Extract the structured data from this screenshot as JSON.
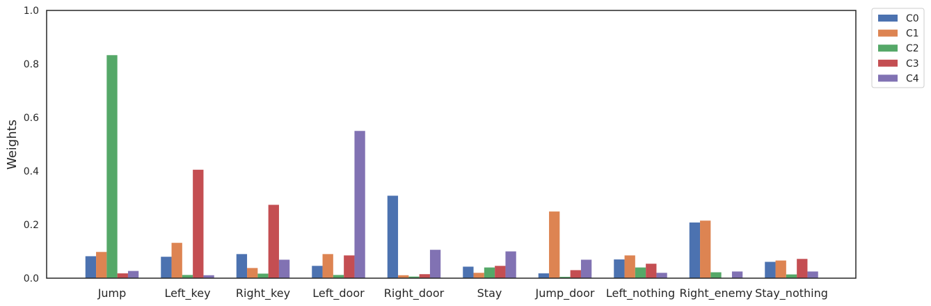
{
  "chart_data": {
    "type": "bar",
    "title": "",
    "xlabel": "",
    "ylabel": "Weights",
    "ylim": [
      0,
      1.0
    ],
    "yticks": [
      "0.0",
      "0.2",
      "0.4",
      "0.6",
      "0.8",
      "1.0"
    ],
    "grid": false,
    "legend_position": "outside-top-right",
    "categories": [
      "Jump",
      "Left_key",
      "Right_key",
      "Left_door",
      "Right_door",
      "Stay",
      "Jump_door",
      "Left_nothing",
      "Right_enemy",
      "Stay_nothing"
    ],
    "series": [
      {
        "name": "C0",
        "color": "#4c72b0",
        "values": [
          0.082,
          0.08,
          0.09,
          0.046,
          0.308,
          0.043,
          0.018,
          0.07,
          0.208,
          0.061
        ]
      },
      {
        "name": "C1",
        "color": "#dd8452",
        "values": [
          0.098,
          0.132,
          0.038,
          0.09,
          0.011,
          0.02,
          0.249,
          0.085,
          0.215,
          0.066
        ]
      },
      {
        "name": "C2",
        "color": "#55a868",
        "values": [
          0.833,
          0.012,
          0.017,
          0.012,
          0.006,
          0.04,
          0.005,
          0.04,
          0.022,
          0.014
        ]
      },
      {
        "name": "C3",
        "color": "#c44e52",
        "values": [
          0.018,
          0.405,
          0.274,
          0.085,
          0.015,
          0.046,
          0.03,
          0.054,
          0.0,
          0.072
        ]
      },
      {
        "name": "C4",
        "color": "#8172b3",
        "values": [
          0.027,
          0.011,
          0.069,
          0.55,
          0.106,
          0.1,
          0.069,
          0.02,
          0.025,
          0.025
        ]
      }
    ]
  }
}
